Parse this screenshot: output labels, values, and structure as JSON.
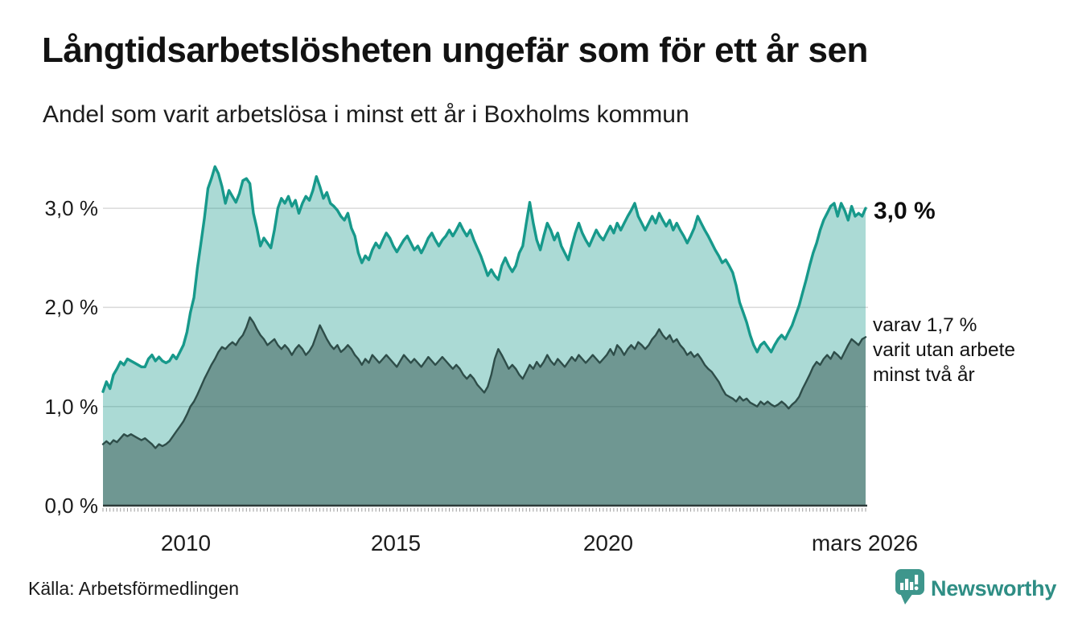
{
  "header": {
    "title": "Långtidsarbetslösheten ungefär som för ett år sen",
    "subtitle": "Andel som varit arbetslösa i minst ett år i Boxholms kommun"
  },
  "footer": {
    "source": "Källa: Arbetsförmedlingen",
    "brand": "Newsworthy"
  },
  "colors": {
    "line_1yr": "#17998b",
    "fill_1yr": "rgba(23,153,139,0.36)",
    "line_2yr": "#2e4d49",
    "fill_2yr": "rgba(46,77,73,0.48)",
    "gridline": "#d9d9d9",
    "axis": "#2d3b39",
    "brand_teal": "#3e968c"
  },
  "chart_data": {
    "type": "area",
    "title": "Långtidsarbetslösheten ungefär som för ett år sen",
    "subtitle": "Andel som varit arbetslösa i minst ett år i Boxholms kommun",
    "x_start_year": 2008,
    "x_step_months": 1,
    "x_end_label": "mars 2026",
    "ylim": [
      0,
      3.5
    ],
    "grid": true,
    "y_ticks": [
      {
        "label": "0,0 %",
        "value": 0
      },
      {
        "label": "1,0 %",
        "value": 1
      },
      {
        "label": "2,0 %",
        "value": 2
      },
      {
        "label": "3,0 %",
        "value": 3
      }
    ],
    "x_ticks": [
      {
        "label": "2010",
        "year": 2010
      },
      {
        "label": "2015",
        "year": 2015
      },
      {
        "label": "2020",
        "year": 2020
      },
      {
        "label": "mars 2026",
        "year": 2026.17
      }
    ],
    "annotations": {
      "end_value_top": "3,0 %",
      "end_note_lines": [
        "varav 1,7 %",
        "varit utan arbete",
        "minst två år"
      ]
    },
    "series": [
      {
        "name": "Andel arbetslösa minst ett år",
        "end_value_pct": 3.0,
        "color": "#17998b",
        "fill": "rgba(23,153,139,0.36)",
        "stroke_width": 3.4,
        "values": [
          1.15,
          1.25,
          1.18,
          1.32,
          1.38,
          1.45,
          1.42,
          1.48,
          1.46,
          1.44,
          1.42,
          1.4,
          1.4,
          1.48,
          1.52,
          1.46,
          1.5,
          1.46,
          1.44,
          1.46,
          1.52,
          1.48,
          1.55,
          1.62,
          1.75,
          1.95,
          2.1,
          2.4,
          2.65,
          2.9,
          3.2,
          3.3,
          3.42,
          3.35,
          3.22,
          3.05,
          3.18,
          3.12,
          3.06,
          3.15,
          3.28,
          3.3,
          3.25,
          2.95,
          2.8,
          2.62,
          2.7,
          2.65,
          2.6,
          2.78,
          3.0,
          3.1,
          3.05,
          3.12,
          3.02,
          3.08,
          2.95,
          3.05,
          3.12,
          3.08,
          3.18,
          3.32,
          3.22,
          3.1,
          3.16,
          3.05,
          3.02,
          2.98,
          2.92,
          2.88,
          2.95,
          2.8,
          2.72,
          2.55,
          2.45,
          2.52,
          2.48,
          2.58,
          2.65,
          2.6,
          2.68,
          2.75,
          2.7,
          2.62,
          2.56,
          2.62,
          2.68,
          2.72,
          2.65,
          2.58,
          2.62,
          2.55,
          2.62,
          2.7,
          2.75,
          2.68,
          2.62,
          2.68,
          2.72,
          2.78,
          2.72,
          2.78,
          2.85,
          2.78,
          2.72,
          2.78,
          2.68,
          2.6,
          2.52,
          2.42,
          2.32,
          2.38,
          2.32,
          2.28,
          2.42,
          2.5,
          2.42,
          2.36,
          2.42,
          2.55,
          2.62,
          2.85,
          3.06,
          2.85,
          2.68,
          2.58,
          2.72,
          2.85,
          2.78,
          2.68,
          2.75,
          2.62,
          2.55,
          2.48,
          2.62,
          2.75,
          2.85,
          2.75,
          2.68,
          2.62,
          2.7,
          2.78,
          2.72,
          2.68,
          2.75,
          2.82,
          2.75,
          2.85,
          2.78,
          2.85,
          2.92,
          2.98,
          3.05,
          2.92,
          2.85,
          2.78,
          2.85,
          2.92,
          2.85,
          2.95,
          2.88,
          2.82,
          2.88,
          2.78,
          2.85,
          2.78,
          2.72,
          2.65,
          2.72,
          2.8,
          2.92,
          2.85,
          2.78,
          2.72,
          2.65,
          2.58,
          2.52,
          2.45,
          2.48,
          2.42,
          2.35,
          2.22,
          2.05,
          1.95,
          1.85,
          1.72,
          1.62,
          1.55,
          1.62,
          1.65,
          1.6,
          1.55,
          1.62,
          1.68,
          1.72,
          1.68,
          1.75,
          1.82,
          1.92,
          2.02,
          2.15,
          2.28,
          2.42,
          2.55,
          2.65,
          2.78,
          2.88,
          2.95,
          3.02,
          3.05,
          2.92,
          3.05,
          2.98,
          2.88,
          3.02,
          2.92,
          2.95,
          2.92,
          3.0
        ]
      },
      {
        "name": "varav utan arbete minst två år",
        "end_value_pct": 1.7,
        "color": "#2e4d49",
        "fill": "rgba(46,77,73,0.48)",
        "stroke_width": 2.4,
        "values": [
          0.62,
          0.65,
          0.62,
          0.66,
          0.64,
          0.68,
          0.72,
          0.7,
          0.72,
          0.7,
          0.68,
          0.66,
          0.68,
          0.65,
          0.62,
          0.58,
          0.62,
          0.6,
          0.62,
          0.65,
          0.7,
          0.75,
          0.8,
          0.85,
          0.92,
          1.0,
          1.05,
          1.12,
          1.2,
          1.28,
          1.35,
          1.42,
          1.48,
          1.55,
          1.6,
          1.58,
          1.62,
          1.65,
          1.62,
          1.68,
          1.72,
          1.8,
          1.9,
          1.85,
          1.78,
          1.72,
          1.68,
          1.62,
          1.65,
          1.68,
          1.62,
          1.58,
          1.62,
          1.58,
          1.52,
          1.58,
          1.62,
          1.58,
          1.52,
          1.56,
          1.62,
          1.72,
          1.82,
          1.75,
          1.68,
          1.62,
          1.58,
          1.62,
          1.55,
          1.58,
          1.62,
          1.58,
          1.52,
          1.48,
          1.42,
          1.48,
          1.44,
          1.52,
          1.48,
          1.44,
          1.48,
          1.52,
          1.48,
          1.44,
          1.4,
          1.46,
          1.52,
          1.48,
          1.44,
          1.48,
          1.44,
          1.4,
          1.45,
          1.5,
          1.46,
          1.42,
          1.46,
          1.5,
          1.46,
          1.42,
          1.38,
          1.42,
          1.38,
          1.32,
          1.28,
          1.32,
          1.28,
          1.22,
          1.18,
          1.14,
          1.2,
          1.32,
          1.48,
          1.58,
          1.52,
          1.45,
          1.38,
          1.42,
          1.38,
          1.32,
          1.28,
          1.35,
          1.42,
          1.38,
          1.45,
          1.4,
          1.45,
          1.52,
          1.46,
          1.42,
          1.48,
          1.44,
          1.4,
          1.45,
          1.5,
          1.46,
          1.52,
          1.48,
          1.44,
          1.48,
          1.52,
          1.48,
          1.44,
          1.48,
          1.52,
          1.58,
          1.52,
          1.62,
          1.58,
          1.52,
          1.58,
          1.62,
          1.58,
          1.65,
          1.62,
          1.58,
          1.62,
          1.68,
          1.72,
          1.78,
          1.72,
          1.68,
          1.72,
          1.65,
          1.68,
          1.62,
          1.58,
          1.52,
          1.55,
          1.5,
          1.53,
          1.48,
          1.42,
          1.38,
          1.35,
          1.3,
          1.25,
          1.18,
          1.12,
          1.1,
          1.08,
          1.05,
          1.1,
          1.06,
          1.08,
          1.04,
          1.02,
          1.0,
          1.05,
          1.02,
          1.05,
          1.02,
          1.0,
          1.02,
          1.05,
          1.02,
          0.98,
          1.02,
          1.05,
          1.1,
          1.18,
          1.25,
          1.32,
          1.4,
          1.45,
          1.42,
          1.48,
          1.52,
          1.48,
          1.55,
          1.52,
          1.48,
          1.55,
          1.62,
          1.68,
          1.65,
          1.62,
          1.68,
          1.7
        ]
      }
    ]
  }
}
